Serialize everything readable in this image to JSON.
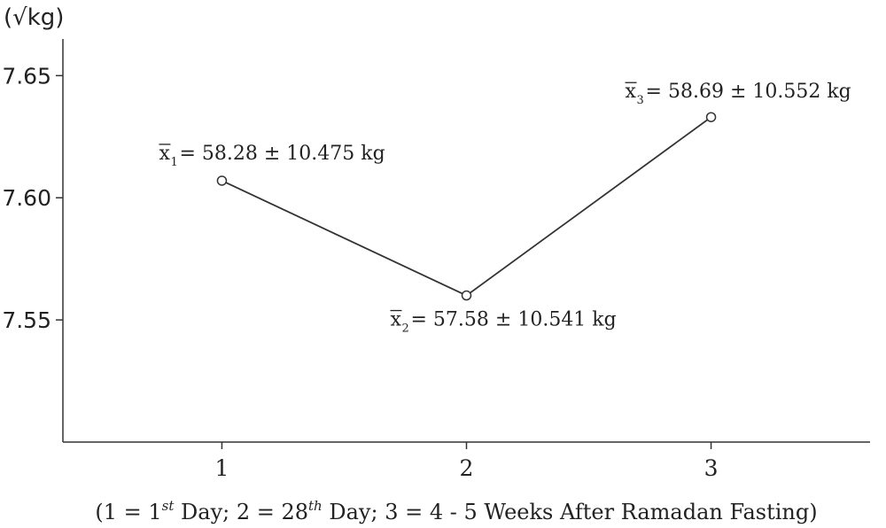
{
  "chart_data": {
    "type": "line",
    "title": "",
    "ylabel": "(√kg)",
    "xlabel": {
      "prefix": "(1 = 1",
      "sup1": "st",
      "middle": " Day; 2 = 28",
      "sup2": "th",
      "suffix": " Day; 3 = 4 - 5 Weeks After Ramadan Fasting)"
    },
    "x": [
      1,
      2,
      3
    ],
    "xticks": [
      "1",
      "2",
      "3"
    ],
    "xlim": [
      0.35,
      3.65
    ],
    "ylim": [
      7.5,
      7.665
    ],
    "yticks": [
      "7.55",
      "7.60",
      "7.65"
    ],
    "ytick_values": [
      7.55,
      7.6,
      7.65
    ],
    "grid": false,
    "series": [
      {
        "values": [
          7.607,
          7.56,
          7.633
        ]
      }
    ],
    "annotations": [
      {
        "sub": "1",
        "text": "= 58.28 ± 10.475 kg"
      },
      {
        "sub": "2",
        "text": "= 57.58 ± 10.541 kg"
      },
      {
        "sub": "3",
        "text": "= 58.69 ± 10.552 kg"
      }
    ],
    "line_color": "#333333"
  }
}
